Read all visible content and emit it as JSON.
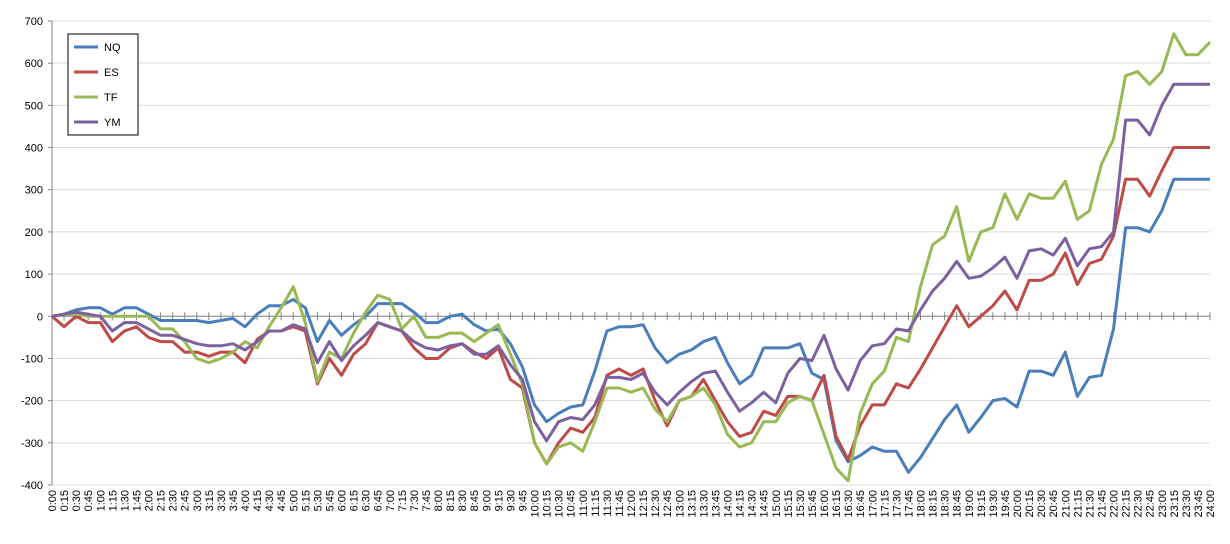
{
  "chart_data": {
    "type": "line",
    "categories": [
      "0:00",
      "0:15",
      "0:30",
      "0:45",
      "1:00",
      "1:15",
      "1:30",
      "1:45",
      "2:00",
      "2:15",
      "2:30",
      "2:45",
      "3:00",
      "3:15",
      "3:30",
      "3:45",
      "4:00",
      "4:15",
      "4:30",
      "4:45",
      "5:00",
      "5:15",
      "5:30",
      "5:45",
      "6:00",
      "6:15",
      "6:30",
      "6:45",
      "7:00",
      "7:15",
      "7:30",
      "7:45",
      "8:00",
      "8:15",
      "8:30",
      "8:45",
      "9:00",
      "9:15",
      "9:30",
      "9:45",
      "10:00",
      "10:15",
      "10:30",
      "10:45",
      "11:00",
      "11:15",
      "11:30",
      "11:45",
      "12:00",
      "12:15",
      "12:30",
      "12:45",
      "13:00",
      "13:15",
      "13:30",
      "13:45",
      "14:00",
      "14:15",
      "14:30",
      "14:45",
      "15:00",
      "15:15",
      "15:30",
      "15:45",
      "16:00",
      "16:15",
      "16:30",
      "16:45",
      "17:00",
      "17:15",
      "17:30",
      "17:45",
      "18:00",
      "18:15",
      "18:30",
      "18:45",
      "19:00",
      "19:15",
      "19:30",
      "19:45",
      "20:00",
      "20:15",
      "20:30",
      "20:45",
      "21:00",
      "21:15",
      "21:30",
      "21:45",
      "22:00",
      "22:15",
      "22:30",
      "22:45",
      "23:00",
      "23:15",
      "23:30",
      "23:45",
      "24:00"
    ],
    "series": [
      {
        "name": "NQ",
        "color": "#4a7ebb",
        "values": [
          0,
          5,
          15,
          20,
          20,
          5,
          20,
          20,
          5,
          -10,
          -10,
          -10,
          -10,
          -15,
          -10,
          -5,
          -25,
          5,
          25,
          25,
          40,
          20,
          -60,
          -10,
          -45,
          -20,
          0,
          30,
          30,
          30,
          10,
          -15,
          -15,
          0,
          5,
          -20,
          -35,
          -30,
          -65,
          -120,
          -210,
          -250,
          -230,
          -215,
          -210,
          -130,
          -35,
          -25,
          -25,
          -20,
          -75,
          -110,
          -90,
          -80,
          -60,
          -50,
          -110,
          -160,
          -140,
          -75,
          -75,
          -75,
          -65,
          -135,
          -150,
          -295,
          -345,
          -330,
          -310,
          -320,
          -320,
          -370,
          -335,
          -290,
          -245,
          -210,
          -275,
          -240,
          -200,
          -195,
          -215,
          -130,
          -130,
          -140,
          -85,
          -190,
          -145,
          -140,
          -30,
          210,
          210,
          200,
          250,
          325,
          325,
          325,
          325
        ]
      },
      {
        "name": "ES",
        "color": "#be4b48",
        "values": [
          0,
          -25,
          0,
          -15,
          -15,
          -60,
          -35,
          -25,
          -50,
          -60,
          -60,
          -85,
          -85,
          -95,
          -85,
          -85,
          -110,
          -55,
          -35,
          -35,
          -25,
          -35,
          -160,
          -100,
          -140,
          -90,
          -65,
          -15,
          -25,
          -35,
          -75,
          -100,
          -100,
          -75,
          -65,
          -85,
          -100,
          -75,
          -150,
          -170,
          -300,
          -350,
          -300,
          -265,
          -275,
          -240,
          -140,
          -125,
          -140,
          -125,
          -200,
          -260,
          -200,
          -190,
          -150,
          -200,
          -250,
          -285,
          -275,
          -225,
          -235,
          -190,
          -190,
          -200,
          -140,
          -285,
          -340,
          -260,
          -210,
          -210,
          -160,
          -170,
          -125,
          -75,
          -25,
          25,
          -25,
          0,
          25,
          60,
          15,
          85,
          85,
          100,
          150,
          75,
          125,
          135,
          190,
          325,
          325,
          285,
          345,
          400,
          400,
          400,
          400
        ]
      },
      {
        "name": "TF",
        "color": "#98b954",
        "values": [
          0,
          5,
          5,
          0,
          0,
          0,
          0,
          0,
          0,
          -30,
          -30,
          -60,
          -100,
          -110,
          -100,
          -85,
          -60,
          -75,
          -25,
          20,
          70,
          -15,
          -155,
          -85,
          -100,
          -40,
          10,
          50,
          40,
          -30,
          0,
          -50,
          -50,
          -40,
          -40,
          -60,
          -40,
          -20,
          -90,
          -160,
          -300,
          -350,
          -310,
          -300,
          -320,
          -250,
          -170,
          -170,
          -180,
          -170,
          -220,
          -250,
          -200,
          -190,
          -170,
          -210,
          -280,
          -310,
          -300,
          -250,
          -250,
          -205,
          -190,
          -200,
          -280,
          -360,
          -390,
          -230,
          -160,
          -130,
          -50,
          -60,
          70,
          170,
          190,
          260,
          130,
          200,
          210,
          290,
          230,
          290,
          280,
          280,
          320,
          230,
          250,
          360,
          420,
          570,
          580,
          550,
          580,
          670,
          620,
          620,
          650
        ]
      },
      {
        "name": "YM",
        "color": "#7d60a0",
        "values": [
          0,
          5,
          10,
          5,
          0,
          -35,
          -15,
          -15,
          -30,
          -45,
          -45,
          -55,
          -65,
          -70,
          -70,
          -65,
          -80,
          -60,
          -35,
          -35,
          -20,
          -30,
          -110,
          -60,
          -105,
          -70,
          -45,
          -15,
          -25,
          -35,
          -60,
          -75,
          -80,
          -70,
          -65,
          -90,
          -90,
          -70,
          -115,
          -150,
          -250,
          -295,
          -250,
          -240,
          -245,
          -210,
          -145,
          -145,
          -150,
          -135,
          -180,
          -210,
          -180,
          -155,
          -135,
          -130,
          -180,
          -225,
          -205,
          -180,
          -205,
          -135,
          -100,
          -105,
          -45,
          -125,
          -175,
          -105,
          -70,
          -65,
          -30,
          -35,
          15,
          60,
          90,
          130,
          90,
          95,
          115,
          140,
          90,
          155,
          160,
          145,
          185,
          120,
          160,
          165,
          200,
          465,
          465,
          430,
          500,
          550,
          550,
          550,
          550
        ]
      }
    ],
    "ylim": [
      -400,
      700
    ],
    "yticks": [
      -400,
      -300,
      -200,
      -100,
      0,
      100,
      200,
      300,
      400,
      500,
      600,
      700
    ],
    "grid": true,
    "legend": "top-left"
  }
}
